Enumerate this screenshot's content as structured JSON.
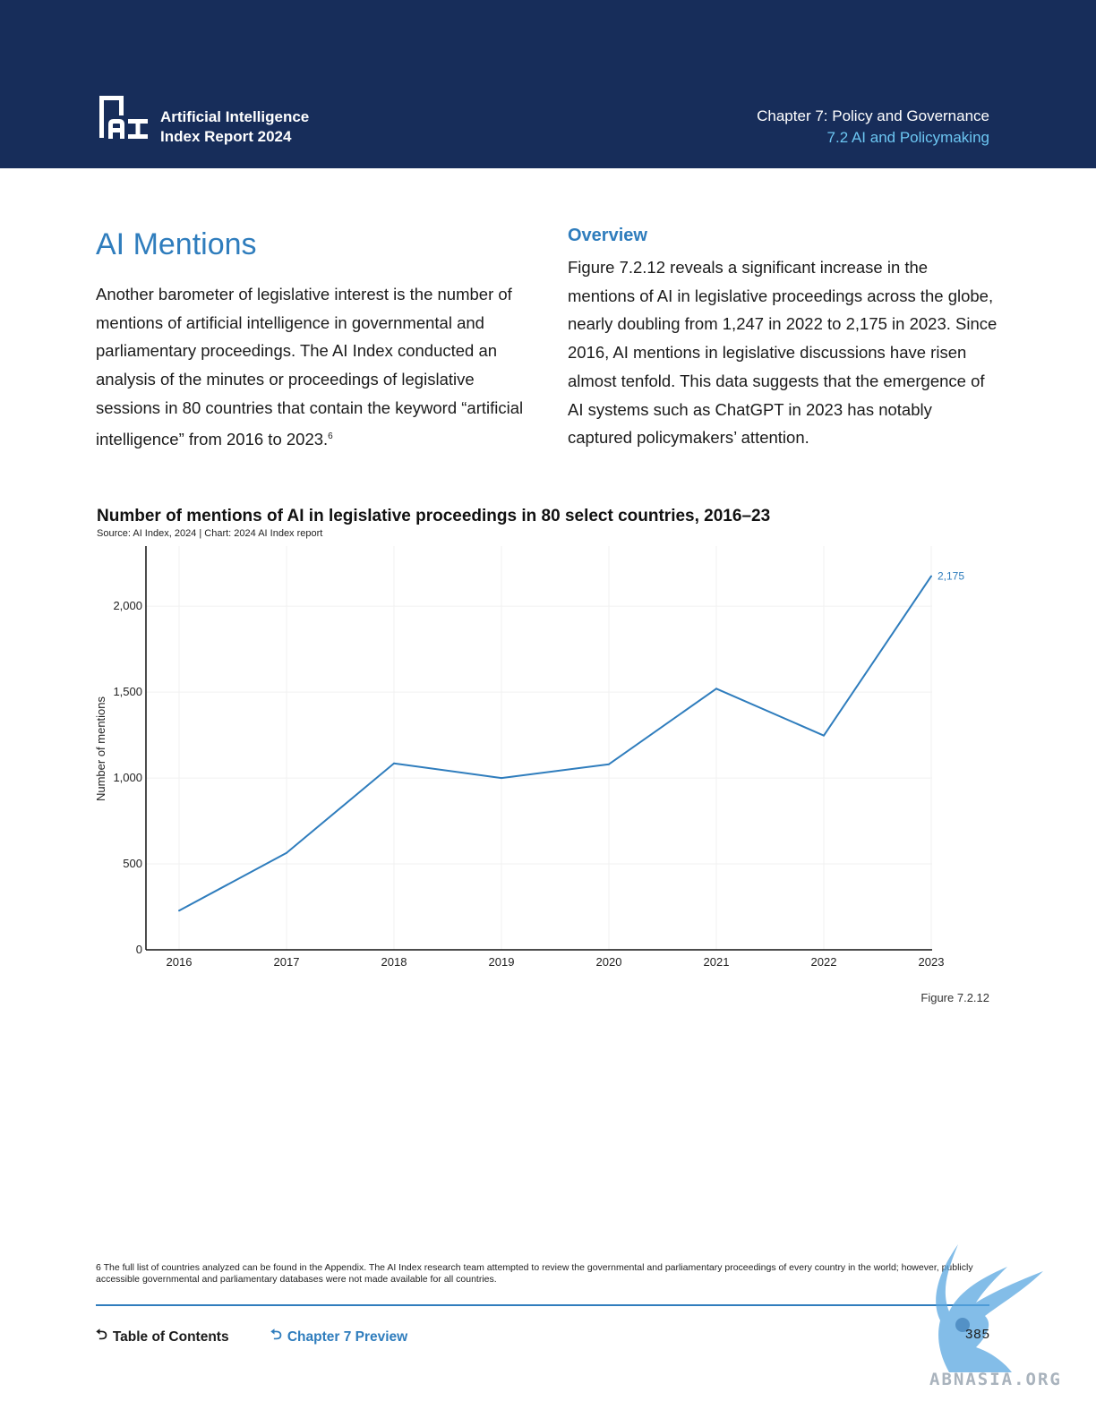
{
  "header": {
    "logo_line1": "Artificial Intelligence",
    "logo_line2": "Index Report 2024",
    "chapter": "Chapter 7: Policy and Governance",
    "section": "7.2 AI and Policymaking"
  },
  "main": {
    "title": "AI Mentions",
    "intro": "Another barometer of legislative interest is the number of mentions of artificial intelligence in governmental and parliamentary proceedings. The AI Index conducted an analysis of the minutes or proceedings of legislative sessions in 80 countries that contain the keyword “artificial intelligence” from 2016 to 2023.",
    "intro_footnote_ref": "6",
    "overview_title": "Overview",
    "overview_text": "Figure 7.2.12 reveals a significant increase in the mentions of AI in legislative proceedings across the globe, nearly doubling from 1,247 in 2022 to 2,175 in 2023. Since 2016, AI mentions in legislative discussions have risen almost tenfold. This data suggests that the emergence of AI systems such as ChatGPT in 2023 has notably captured policymakers’ attention."
  },
  "chart_data": {
    "type": "line",
    "title": "Number of mentions of AI in legislative proceedings in 80 select countries, 2016–23",
    "source": "Source: AI Index, 2024 | Chart: 2024 AI Index report",
    "xlabel": "",
    "ylabel": "Number of mentions",
    "categories": [
      "2016",
      "2017",
      "2018",
      "2019",
      "2020",
      "2021",
      "2022",
      "2023"
    ],
    "values": [
      228,
      564,
      1085,
      1000,
      1080,
      1520,
      1247,
      2175
    ],
    "yticks": [
      0,
      500,
      1000,
      1500,
      2000
    ],
    "ytick_labels": [
      "0",
      "500",
      "1,000",
      "1,500",
      "2,000"
    ],
    "ylim": [
      0,
      2350
    ],
    "data_labels": [
      {
        "index": 7,
        "text": "2,175"
      }
    ],
    "line_color": "#2f7dbd",
    "grid": true,
    "figure_label": "Figure 7.2.12"
  },
  "footer": {
    "footnote": "6 The full list of countries analyzed can be found in the Appendix. The AI Index research team attempted to review the governmental and parliamentary proceedings of every country in the world; however, publicly accessible governmental and parliamentary databases were not made available for all countries.",
    "toc_label": "Table of Contents",
    "chapter_preview_label": "Chapter 7 Preview",
    "page_number": "385",
    "watermark": "ABNASIA.ORG"
  },
  "colors": {
    "header_bg": "#172d5a",
    "accent": "#2f7dbd",
    "section_light": "#6cc6f2"
  }
}
